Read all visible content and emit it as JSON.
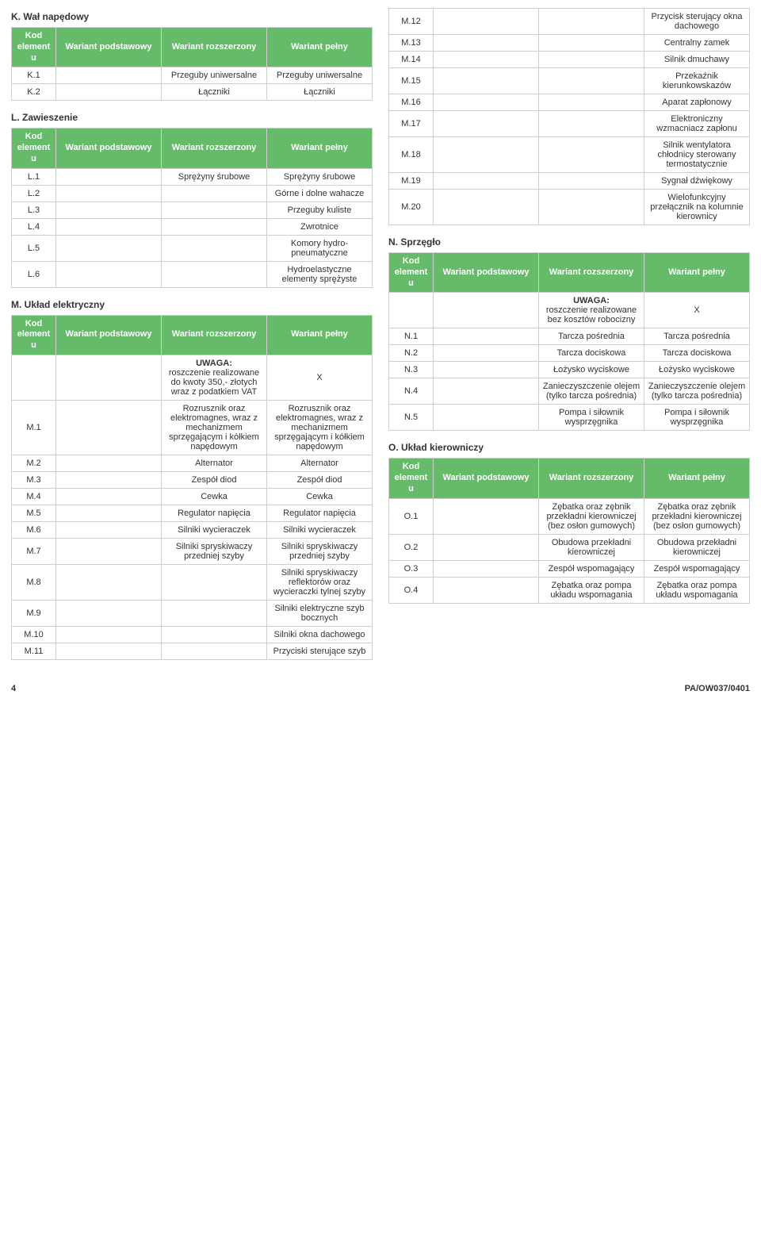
{
  "colors": {
    "header_bg": "#66bb6a",
    "header_fg": "#ffffff",
    "border": "#cfcfcf"
  },
  "headers": {
    "kod": "Kod elementu",
    "podst": "Wariant podstawowy",
    "rozsz": "Wariant rozszerzony",
    "pelny": "Wariant pełny"
  },
  "k": {
    "title": "K. Wał napędowy",
    "rows": [
      {
        "kod": "K.1",
        "rozsz": "Przeguby uniwersalne",
        "pelny": "Przeguby uniwersalne"
      },
      {
        "kod": "K.2",
        "rozsz": "Łączniki",
        "pelny": "Łączniki"
      }
    ]
  },
  "l": {
    "title": "L. Zawieszenie",
    "rows": [
      {
        "kod": "L.1",
        "rozsz": "Sprężyny śrubowe",
        "pelny": "Sprężyny śrubowe"
      },
      {
        "kod": "L.2",
        "pelny": "Górne i dolne wahacze"
      },
      {
        "kod": "L.3",
        "pelny": "Przeguby kuliste"
      },
      {
        "kod": "L.4",
        "pelny": "Zwrotnice"
      },
      {
        "kod": "L.5",
        "pelny": "Komory hydro-pneumatyczne"
      },
      {
        "kod": "L.6",
        "pelny": "Hydroelastyczne elementy sprężyste"
      }
    ]
  },
  "m": {
    "title": "M. Układ elektryczny",
    "rows": [
      {
        "kod": "",
        "rozsz": "UWAGA: roszczenie realizowane do kwoty 350,- złotych wraz z podatkiem VAT",
        "rozsz_bold": "UWAGA:",
        "rozsz_rest": "roszczenie realizowane do kwoty 350,- złotych wraz z podatkiem VAT",
        "pelny": "X"
      },
      {
        "kod": "M.1",
        "rozsz": "Rozrusznik oraz elektromagnes, wraz z mechanizmem sprzęgającym i kółkiem napędowym",
        "pelny": "Rozrusznik oraz elektromagnes, wraz z mechanizmem sprzęgającym i kółkiem napędowym"
      },
      {
        "kod": "M.2",
        "rozsz": "Alternator",
        "pelny": "Alternator"
      },
      {
        "kod": "M.3",
        "rozsz": "Zespół diod",
        "pelny": "Zespół diod"
      },
      {
        "kod": "M.4",
        "rozsz": "Cewka",
        "pelny": "Cewka"
      },
      {
        "kod": "M.5",
        "rozsz": "Regulator napięcia",
        "pelny": "Regulator napięcia"
      },
      {
        "kod": "M.6",
        "rozsz": "Silniki wycieraczek",
        "pelny": "Silniki wycieraczek"
      },
      {
        "kod": "M.7",
        "rozsz": "Silniki spryskiwaczy przedniej szyby",
        "pelny": "Silniki spryskiwaczy przedniej szyby"
      },
      {
        "kod": "M.8",
        "pelny": "Silniki spryskiwaczy reflektorów oraz wycieraczki tylnej szyby"
      },
      {
        "kod": "M.9",
        "pelny": "Silniki elektryczne szyb bocznych"
      },
      {
        "kod": "M.10",
        "pelny": "Silniki okna dachowego"
      },
      {
        "kod": "M.11",
        "pelny": "Przyciski sterujące szyb"
      }
    ]
  },
  "m2": {
    "rows": [
      {
        "kod": "M.12",
        "pelny": "Przycisk sterujący okna dachowego"
      },
      {
        "kod": "M.13",
        "pelny": "Centralny zamek"
      },
      {
        "kod": "M.14",
        "pelny": "Silnik dmuchawy"
      },
      {
        "kod": "M.15",
        "pelny": "Przekaźnik kierunkowskazów"
      },
      {
        "kod": "M.16",
        "pelny": "Aparat zapłonowy"
      },
      {
        "kod": "M.17",
        "pelny": "Elektroniczny wzmacniacz zapłonu"
      },
      {
        "kod": "M.18",
        "pelny": "Silnik wentylatora chłodnicy sterowany termostatycznie"
      },
      {
        "kod": "M.19",
        "pelny": "Sygnał dźwiękowy"
      },
      {
        "kod": "M.20",
        "pelny": "Wielofunkcyjny przełącznik na kolumnie kierownicy"
      }
    ]
  },
  "n": {
    "title": "N. Sprzęgło",
    "rows": [
      {
        "kod": "",
        "rozsz_bold": "UWAGA:",
        "rozsz_rest": "roszczenie realizowane bez kosztów robocizny",
        "pelny": "X"
      },
      {
        "kod": "N.1",
        "rozsz": "Tarcza pośrednia",
        "pelny": "Tarcza pośrednia"
      },
      {
        "kod": "N.2",
        "rozsz": "Tarcza dociskowa",
        "pelny": "Tarcza dociskowa"
      },
      {
        "kod": "N.3",
        "rozsz": "Łożysko wyciskowe",
        "pelny": "Łożysko wyciskowe"
      },
      {
        "kod": "N.4",
        "rozsz": "Zanieczyszczenie olejem (tylko tarcza pośrednia)",
        "pelny": "Zanieczyszczenie olejem (tylko tarcza pośrednia)"
      },
      {
        "kod": "N.5",
        "rozsz": "Pompa i siłownik wysprzęgnika",
        "pelny": "Pompa i siłownik wysprzęgnika"
      }
    ]
  },
  "o": {
    "title": "O. Układ kierowniczy",
    "rows": [
      {
        "kod": "O.1",
        "rozsz": "Zębatka oraz zębnik przekładni kierowniczej (bez osłon gumowych)",
        "pelny": "Zębatka oraz zębnik przekładni kierowniczej (bez osłon gumowych)"
      },
      {
        "kod": "O.2",
        "rozsz": "Obudowa przekładni kierowniczej",
        "pelny": "Obudowa przekładni kierowniczej"
      },
      {
        "kod": "O.3",
        "rozsz": "Zespół wspomagający",
        "pelny": "Zespół wspomagający"
      },
      {
        "kod": "O.4",
        "rozsz": "Zębatka oraz pompa układu wspomagania",
        "pelny": "Zębatka oraz pompa układu wspomagania"
      }
    ]
  },
  "footer": {
    "page": "4",
    "ref": "PA/OW037/0401"
  }
}
